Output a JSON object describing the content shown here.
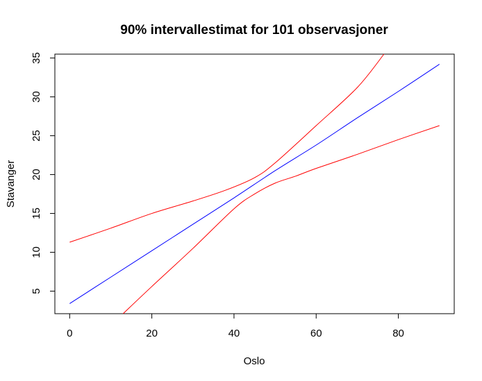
{
  "chart_data": {
    "type": "line",
    "title": "90% intervallestimat for 101 observasjoner",
    "xlabel": "Oslo",
    "ylabel": "Stavanger",
    "xlim": [
      -3.6,
      93.6
    ],
    "ylim": [
      2.1,
      35.5
    ],
    "x_ticks": [
      0,
      20,
      40,
      60,
      80
    ],
    "y_ticks": [
      5,
      10,
      15,
      20,
      25,
      30,
      35
    ],
    "grid": false,
    "legend": "none",
    "series": [
      {
        "color": "#0000ff",
        "points": [
          [
            0,
            3.4
          ],
          [
            10,
            6.8
          ],
          [
            20,
            10.2
          ],
          [
            30,
            13.6
          ],
          [
            40,
            17.0
          ],
          [
            50,
            20.5
          ],
          [
            60,
            23.8
          ],
          [
            70,
            27.3
          ],
          [
            80,
            30.7
          ],
          [
            90,
            34.2
          ]
        ]
      },
      {
        "color": "#ff0000",
        "points": [
          [
            0,
            11.3
          ],
          [
            10,
            13.1
          ],
          [
            20,
            15.0
          ],
          [
            30,
            16.6
          ],
          [
            38,
            18.0
          ],
          [
            45,
            19.6
          ],
          [
            50,
            21.5
          ],
          [
            60,
            26.3
          ],
          [
            70,
            31.2
          ],
          [
            76.5,
            35.5
          ]
        ]
      },
      {
        "color": "#ff0000",
        "points": [
          [
            13,
            2.1
          ],
          [
            20,
            5.6
          ],
          [
            30,
            10.5
          ],
          [
            40,
            15.6
          ],
          [
            45,
            17.5
          ],
          [
            50,
            18.9
          ],
          [
            55,
            19.8
          ],
          [
            60,
            20.8
          ],
          [
            70,
            22.6
          ],
          [
            80,
            24.5
          ],
          [
            90,
            26.3
          ]
        ]
      }
    ]
  }
}
